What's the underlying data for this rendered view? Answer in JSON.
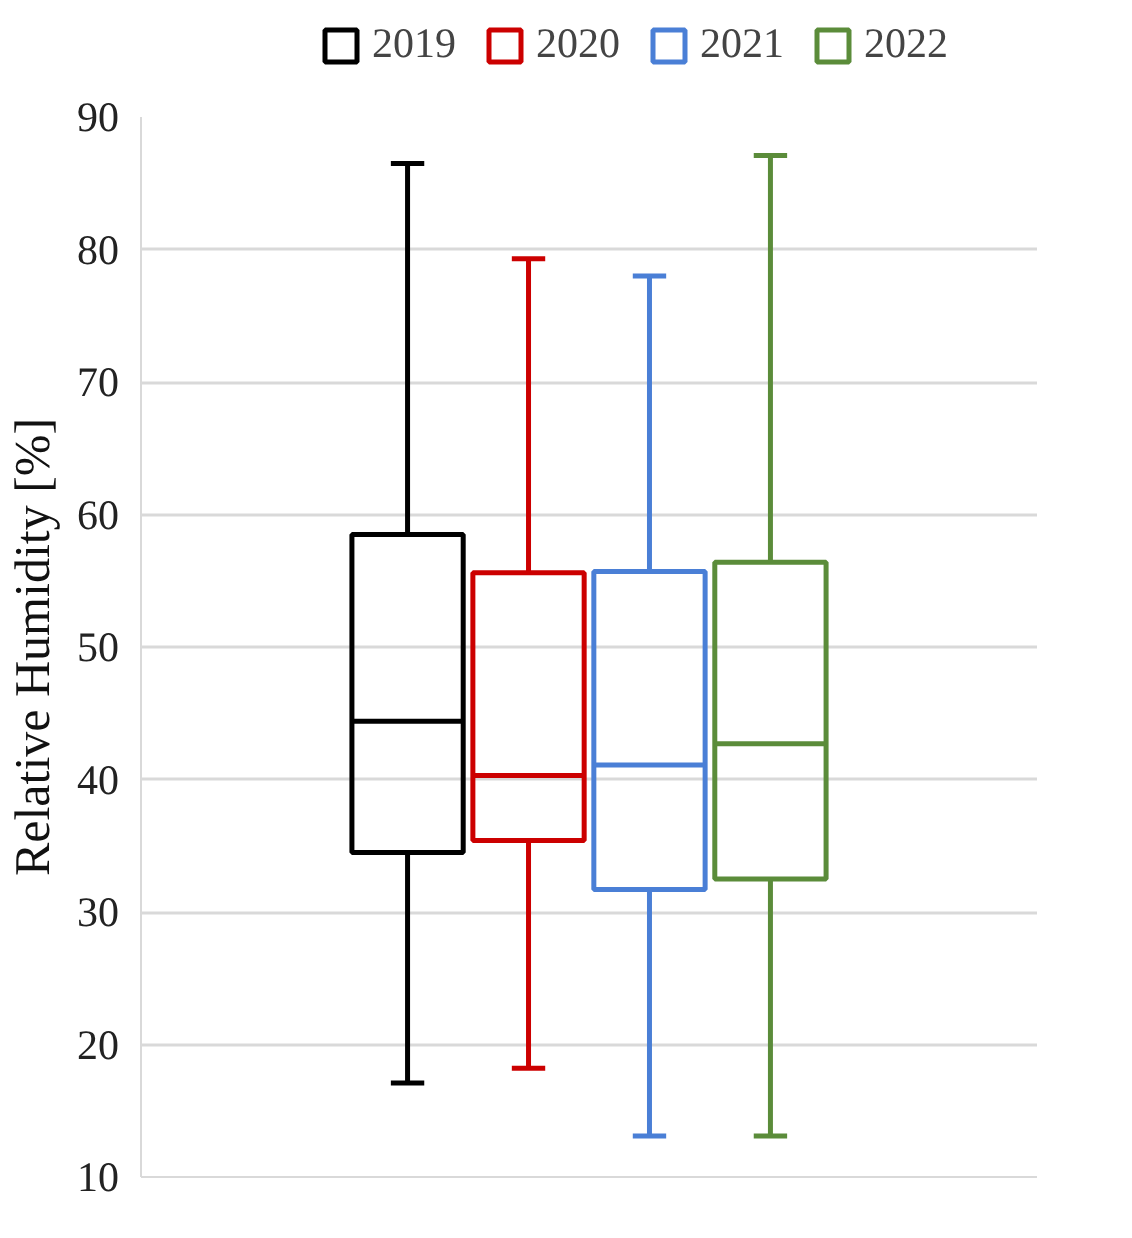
{
  "chart_data": {
    "type": "box",
    "ylabel": "Relative Humidity [%]",
    "categories": [
      null
    ],
    "ylim": [
      10,
      90
    ],
    "yticks": [
      10,
      20,
      30,
      40,
      50,
      60,
      70,
      80,
      90
    ],
    "grid": "y",
    "legend": "top",
    "series": [
      {
        "name": "2019",
        "color": "#000000",
        "boxes": [
          {
            "low": 17.1,
            "q1": 34.5,
            "median": 44.4,
            "q3": 58.5,
            "high": 86.5
          }
        ]
      },
      {
        "name": "2020",
        "color": "#cc0000",
        "boxes": [
          {
            "low": 18.2,
            "q1": 35.4,
            "median": 40.3,
            "q3": 55.6,
            "high": 79.3
          }
        ]
      },
      {
        "name": "2021",
        "color": "#4a7fd6",
        "boxes": [
          {
            "low": 13.1,
            "q1": 31.7,
            "median": 41.1,
            "q3": 55.7,
            "high": 78.0
          }
        ]
      },
      {
        "name": "2022",
        "color": "#5b8c3a",
        "boxes": [
          {
            "low": 13.1,
            "q1": 32.5,
            "median": 42.7,
            "q3": 56.4,
            "high": 87.1
          }
        ]
      }
    ]
  }
}
